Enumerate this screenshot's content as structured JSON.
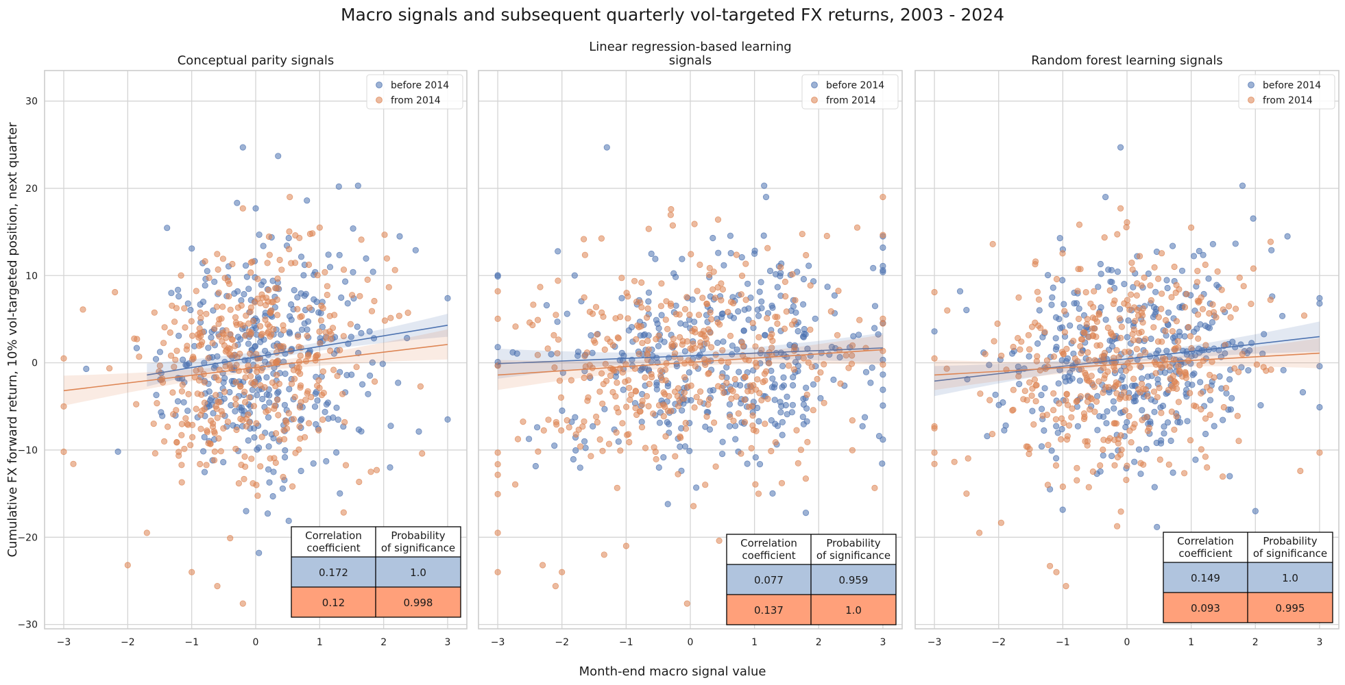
{
  "figure": {
    "title": "Macro signals and subsequent quarterly vol-targeted FX returns, 2003 - 2024",
    "xlabel": "Month-end macro signal value",
    "ylabel": "Cumulative FX forward return, 10% vol-targeted position, next quarter"
  },
  "colors": {
    "before": "#4c72b0",
    "from": "#dd8452",
    "table_header_bg": "#ffffff",
    "table_row1_bg": "#b0c4de",
    "table_row2_bg": "#ffa07a",
    "grid": "#d4d4d4",
    "axes_edge": "#cccccc"
  },
  "table_headers": {
    "col1_line1": "Correlation",
    "col1_line2": "coefficient",
    "col2_line1": "Probability",
    "col2_line2": "of significance"
  },
  "chart_data": [
    {
      "type": "scatter",
      "title_lines": [
        "Conceptual parity signals"
      ],
      "xlim": [
        -3.3,
        3.3
      ],
      "ylim": [
        -30.5,
        33.5
      ],
      "xticks": [
        -3,
        -2,
        -1,
        0,
        1,
        2,
        3
      ],
      "yticks": [
        -30,
        -20,
        -10,
        0,
        10,
        20,
        30
      ],
      "grid": true,
      "legend_position": "upper right",
      "series": [
        {
          "name": "before 2014",
          "color_key": "before",
          "regression": {
            "x0": -1.7,
            "y0": -1.4,
            "x1": 3.0,
            "y1": 4.3
          },
          "cloud": {
            "n": 360,
            "x_mean": 0.15,
            "x_sd": 0.8,
            "y_mean": 0.4,
            "y_sd": 6.2,
            "slope": 1.2
          },
          "notable_points": [
            [
              -0.2,
              24.7
            ],
            [
              0.35,
              23.7
            ],
            [
              1.3,
              20.2
            ],
            [
              1.6,
              20.3
            ],
            [
              0.8,
              18.6
            ],
            [
              0.0,
              17.7
            ],
            [
              2.25,
              14.5
            ],
            [
              2.5,
              12.9
            ],
            [
              -1.0,
              13.1
            ],
            [
              3.0,
              7.4
            ],
            [
              3.0,
              -6.5
            ],
            [
              0.05,
              -21.8
            ],
            [
              -0.15,
              -17.0
            ],
            [
              2.1,
              -12.0
            ]
          ]
        },
        {
          "name": "from 2014",
          "color_key": "from",
          "regression": {
            "x0": -3.0,
            "y0": -3.2,
            "x1": 3.0,
            "y1": 2.1
          },
          "cloud": {
            "n": 400,
            "x_mean": -0.05,
            "x_sd": 0.9,
            "y_mean": -0.2,
            "y_sd": 6.5,
            "slope": 0.9
          },
          "notable_points": [
            [
              -3.0,
              0.5
            ],
            [
              -3.0,
              -5.0
            ],
            [
              -3.0,
              -10.2
            ],
            [
              -2.85,
              -11.6
            ],
            [
              -2.7,
              6.1
            ],
            [
              -2.2,
              8.1
            ],
            [
              -2.0,
              -23.2
            ],
            [
              -1.7,
              -19.5
            ],
            [
              -0.2,
              -27.6
            ],
            [
              -0.6,
              -25.6
            ],
            [
              -1.0,
              -24.0
            ],
            [
              -0.4,
              -20.1
            ],
            [
              -0.2,
              17.7
            ],
            [
              1.0,
              15.5
            ],
            [
              1.8,
              -12.5
            ],
            [
              2.6,
              -10.4
            ]
          ]
        }
      ],
      "stats": [
        {
          "series": "before 2014",
          "correlation": "0.172",
          "probability": "1.0"
        },
        {
          "series": "from 2014",
          "correlation": "0.12",
          "probability": "0.998"
        }
      ]
    },
    {
      "type": "scatter",
      "title_lines": [
        "Linear regression-based learning",
        "signals"
      ],
      "xlim": [
        -3.3,
        3.3
      ],
      "ylim": [
        -30.5,
        33.5
      ],
      "xticks": [
        -3,
        -2,
        -1,
        0,
        1,
        2,
        3
      ],
      "yticks": [
        -30,
        -20,
        -10,
        0,
        10,
        20,
        30
      ],
      "grid": true,
      "legend_position": "upper right",
      "series": [
        {
          "name": "before 2014",
          "color_key": "before",
          "regression": {
            "x0": -3.0,
            "y0": -0.1,
            "x1": 3.0,
            "y1": 1.7
          },
          "cloud": {
            "n": 380,
            "x_mean": 0.4,
            "x_sd": 1.3,
            "y_mean": 0.3,
            "y_sd": 6.0,
            "slope": 0.3
          },
          "notable_points": [
            [
              -1.3,
              24.7
            ],
            [
              1.15,
              20.3
            ],
            [
              3.0,
              14.5
            ],
            [
              3.0,
              13.2
            ],
            [
              3.0,
              10.6
            ],
            [
              3.0,
              -4.9
            ],
            [
              3.0,
              -8.8
            ],
            [
              -3.0,
              9.9
            ],
            [
              -3.0,
              1.8
            ],
            [
              -3.0,
              -0.3
            ],
            [
              0.35,
              14.3
            ],
            [
              1.0,
              12.5
            ],
            [
              -0.35,
              -16.2
            ],
            [
              1.8,
              -17.2
            ]
          ]
        },
        {
          "name": "from 2014",
          "color_key": "from",
          "regression": {
            "x0": -3.0,
            "y0": -1.4,
            "x1": 3.0,
            "y1": 1.5
          },
          "cloud": {
            "n": 400,
            "x_mean": -0.2,
            "x_sd": 1.3,
            "y_mean": -0.2,
            "y_sd": 6.3,
            "slope": 0.5
          },
          "notable_points": [
            [
              -3.0,
              -24.0
            ],
            [
              -3.0,
              -19.5
            ],
            [
              -3.0,
              -10.3
            ],
            [
              -3.0,
              8.2
            ],
            [
              -2.3,
              -23.2
            ],
            [
              -2.1,
              -25.6
            ],
            [
              -2.0,
              -24.0
            ],
            [
              -0.3,
              17.6
            ],
            [
              -0.05,
              -27.6
            ],
            [
              0.45,
              -20.4
            ],
            [
              -1.0,
              -21.0
            ],
            [
              2.6,
              15.5
            ],
            [
              3.0,
              4.5
            ],
            [
              3.0,
              -0.2
            ]
          ]
        }
      ],
      "stats": [
        {
          "series": "before 2014",
          "correlation": "0.077",
          "probability": "0.959"
        },
        {
          "series": "from 2014",
          "correlation": "0.137",
          "probability": "1.0"
        }
      ]
    },
    {
      "type": "scatter",
      "title_lines": [
        "Random forest learning signals"
      ],
      "xlim": [
        -3.3,
        3.3
      ],
      "ylim": [
        -30.5,
        33.5
      ],
      "xticks": [
        -3,
        -2,
        -1,
        0,
        1,
        2,
        3
      ],
      "yticks": [
        -30,
        -20,
        -10,
        0,
        10,
        20,
        30
      ],
      "grid": true,
      "legend_position": "upper right",
      "series": [
        {
          "name": "before 2014",
          "color_key": "before",
          "regression": {
            "x0": -3.0,
            "y0": -2.1,
            "x1": 3.0,
            "y1": 3.0
          },
          "cloud": {
            "n": 370,
            "x_mean": 0.2,
            "x_sd": 1.0,
            "y_mean": 0.3,
            "y_sd": 6.0,
            "slope": 0.9
          },
          "notable_points": [
            [
              -0.1,
              24.7
            ],
            [
              1.8,
              20.3
            ],
            [
              2.5,
              14.5
            ],
            [
              2.25,
              12.9
            ],
            [
              -1.0,
              13.0
            ],
            [
              3.0,
              7.4
            ],
            [
              3.0,
              6.8
            ],
            [
              3.0,
              -0.4
            ],
            [
              3.0,
              -5.1
            ],
            [
              -3.0,
              3.6
            ],
            [
              -2.6,
              8.2
            ],
            [
              2.0,
              -17.0
            ],
            [
              1.6,
              -13.0
            ],
            [
              -1.2,
              -14.5
            ]
          ]
        },
        {
          "name": "from 2014",
          "color_key": "from",
          "regression": {
            "x0": -3.0,
            "y0": -1.4,
            "x1": 3.0,
            "y1": 1.1
          },
          "cloud": {
            "n": 400,
            "x_mean": -0.05,
            "x_sd": 1.0,
            "y_mean": -0.2,
            "y_sd": 6.3,
            "slope": 0.5
          },
          "notable_points": [
            [
              -3.0,
              8.1
            ],
            [
              -3.0,
              0.5
            ],
            [
              -3.0,
              -10.3
            ],
            [
              -3.0,
              -11.6
            ],
            [
              -2.8,
              6.0
            ],
            [
              -2.5,
              -15.0
            ],
            [
              -2.3,
              -19.5
            ],
            [
              -1.2,
              -23.3
            ],
            [
              -1.1,
              -24.0
            ],
            [
              -0.95,
              -25.6
            ],
            [
              -0.1,
              17.7
            ],
            [
              0.0,
              16.1
            ],
            [
              1.0,
              15.5
            ],
            [
              2.7,
              -12.4
            ],
            [
              3.0,
              -10.3
            ]
          ]
        }
      ],
      "stats": [
        {
          "series": "before 2014",
          "correlation": "0.149",
          "probability": "1.0"
        },
        {
          "series": "from 2014",
          "correlation": "0.093",
          "probability": "0.995"
        }
      ]
    }
  ]
}
